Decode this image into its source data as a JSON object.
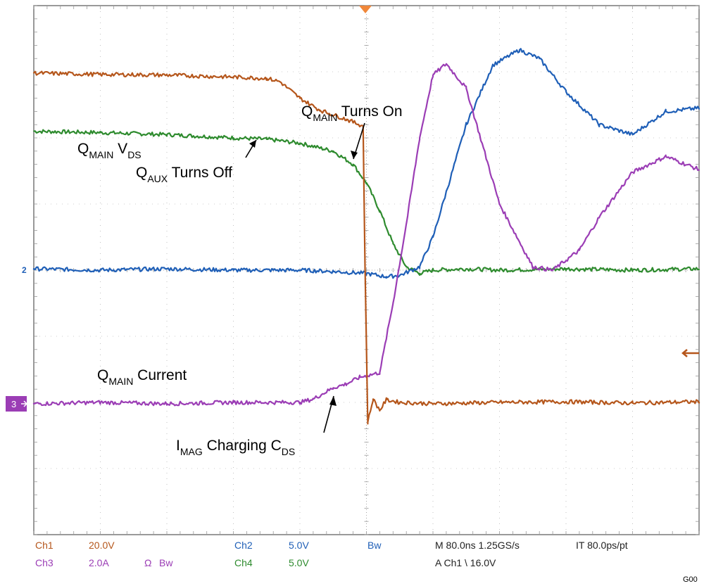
{
  "colors": {
    "ch1": "#b5561b",
    "ch2": "#1f5fb7",
    "ch3": "#9b3db5",
    "ch4": "#2e8b2e",
    "grid": "#9a9a9a",
    "trigger": "#f0873a",
    "marker_arrow": "#b5561b"
  },
  "chart_data": {
    "type": "line",
    "title": "",
    "xlabel": "",
    "ylabel": "",
    "grid": true,
    "divisions": {
      "x": 10,
      "y": 8
    },
    "xlim": [
      -5,
      5
    ],
    "ylim": [
      -4,
      4
    ],
    "x_units": "horizontal divisions from trigger (80.0 ns/div)",
    "y_units": "vertical divisions from center",
    "series": [
      {
        "id": "ch1",
        "x": [
          -5,
          -4,
          -3,
          -2,
          -1.5,
          -1.3,
          -1,
          -0.7,
          -0.3,
          -0.05,
          -0.02,
          0.02,
          0.1,
          0.2,
          0.3,
          0.5,
          1,
          2,
          3,
          4,
          5
        ],
        "y": [
          2.98,
          2.96,
          2.95,
          2.92,
          2.9,
          2.85,
          2.6,
          2.42,
          2.28,
          2.18,
          0,
          -2.3,
          -1.95,
          -2.12,
          -1.96,
          -2.0,
          -2.02,
          -2.0,
          -1.99,
          -2.01,
          -1.99
        ]
      },
      {
        "id": "ch2",
        "x": [
          -5,
          -4,
          -3,
          -2,
          -1,
          -0.5,
          0,
          0.3,
          0.5,
          0.8,
          1,
          1.5,
          1.9,
          2.3,
          2.6,
          3,
          3.5,
          4,
          4.5,
          5
        ],
        "y": [
          0.02,
          0.0,
          0.02,
          0.0,
          0.0,
          -0.02,
          -0.05,
          -0.1,
          -0.08,
          0.05,
          0.5,
          2.2,
          3.1,
          3.33,
          3.2,
          2.7,
          2.2,
          2.05,
          2.4,
          2.45
        ]
      },
      {
        "id": "ch3",
        "x": [
          -5,
          -4,
          -3,
          -2,
          -1,
          -0.8,
          -0.5,
          -0.3,
          -0.1,
          0.2,
          0.4,
          0.6,
          0.8,
          1,
          1.2,
          1.5,
          2,
          2.5,
          2.8,
          3.2,
          3.5,
          4,
          4.5,
          5
        ],
        "y": [
          -2.02,
          -2.0,
          -2.02,
          -2.0,
          -2.0,
          -1.95,
          -1.78,
          -1.72,
          -1.62,
          -1.55,
          -0.5,
          0.7,
          2.0,
          2.95,
          3.12,
          2.75,
          1.0,
          0.05,
          0.0,
          0.3,
          0.8,
          1.48,
          1.72,
          1.52
        ]
      },
      {
        "id": "ch4",
        "x": [
          -5,
          -4,
          -3,
          -2,
          -1.5,
          -1,
          -0.5,
          -0.2,
          0,
          0.2,
          0.4,
          0.6,
          0.8,
          1,
          1.5,
          2,
          3,
          4,
          5
        ],
        "y": [
          2.1,
          2.08,
          2.05,
          2.0,
          1.98,
          1.92,
          1.8,
          1.6,
          1.32,
          0.9,
          0.4,
          0.05,
          -0.05,
          0.0,
          0.02,
          0.0,
          0.02,
          0.0,
          0.02
        ]
      }
    ],
    "annotations": [
      {
        "id": "qmain-vds",
        "main": "Q",
        "parts": [
          {
            "t": "MAIN",
            "sub": true
          },
          {
            "t": " V",
            "sub": false
          },
          {
            "t": "DS",
            "sub": true
          }
        ]
      },
      {
        "id": "qaux-off",
        "main": "Q",
        "parts": [
          {
            "t": "AUX",
            "sub": true
          },
          {
            "t": " Turns Off",
            "sub": false
          }
        ]
      },
      {
        "id": "qmain-on",
        "main": "Q",
        "parts": [
          {
            "t": "MAIN",
            "sub": true
          },
          {
            "t": " Turns On",
            "sub": false
          }
        ]
      },
      {
        "id": "qmain-current",
        "main": "Q",
        "parts": [
          {
            "t": "MAIN",
            "sub": true
          },
          {
            "t": " Current",
            "sub": false
          }
        ]
      },
      {
        "id": "imag-charging",
        "main": "I",
        "parts": [
          {
            "t": "MAG",
            "sub": true
          },
          {
            "t": " Charging C",
            "sub": false
          },
          {
            "t": "DS",
            "sub": true
          }
        ]
      }
    ],
    "channel_markers": {
      "ch2_ch4": "2",
      "ch3": "3"
    }
  },
  "status": {
    "ch1_label": "Ch1",
    "ch1_scale": "20.0V",
    "ch2_label": "Ch2",
    "ch2_scale": "5.0V",
    "bw_top": "Bw",
    "ch3_label": "Ch3",
    "ch3_scale": "2.0A",
    "ohm": "Ω",
    "bw_ch3": "Bw",
    "ch4_label": "Ch4",
    "ch4_scale": "5.0V",
    "timebase": "M 80.0ns 1.25GS/s",
    "record": "IT 80.0ps/pt",
    "trigger": "A  Ch1  \\  16.0V"
  },
  "figure_id": "G00"
}
